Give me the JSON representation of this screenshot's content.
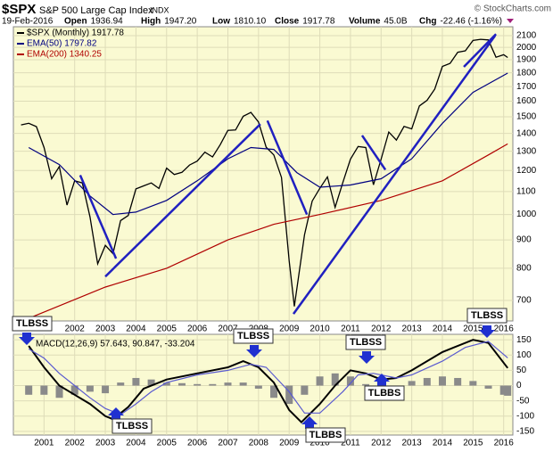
{
  "header": {
    "symbol": "$SPX",
    "name": "S&P 500 Large Cap Index",
    "exchange": "INDX",
    "copyright": "© StockCharts.com",
    "date": "19-Feb-2016",
    "items": [
      {
        "label": "Open",
        "value": "1936.94"
      },
      {
        "label": "High",
        "value": "1947.20"
      },
      {
        "label": "Low",
        "value": "1810.10"
      },
      {
        "label": "Close",
        "value": "1917.78"
      },
      {
        "label": "Volume",
        "value": "45.0B"
      },
      {
        "label": "Chg",
        "value": "-22.46 (-1.16%)"
      }
    ]
  },
  "annotations": [
    "TLBSS",
    "TLBSS",
    "TLBSS",
    "TLBBS",
    "TLBSS",
    "TLBBS",
    "TLBSS"
  ],
  "chart_data": [
    {
      "type": "line",
      "log_y": true,
      "grid": true,
      "xlim": [
        2000,
        2016.3
      ],
      "ylim": [
        643,
        2179
      ],
      "xticks": [
        2002,
        2003,
        2004,
        2005,
        2006,
        2007,
        2008,
        2009,
        2010,
        2011,
        2012,
        2013,
        2014,
        2015,
        2016
      ],
      "yticks": [
        700,
        800,
        900,
        1000,
        1100,
        1200,
        1300,
        1400,
        1500,
        1600,
        1700,
        1800,
        1900,
        2000,
        2100
      ],
      "series": [
        {
          "name": "$SPX (Monthly) 1917.78",
          "color": "#000000",
          "x": [
            2000.25,
            2000.5,
            2000.75,
            2001.0,
            2001.25,
            2001.5,
            2001.75,
            2002.0,
            2002.25,
            2002.5,
            2002.75,
            2003.0,
            2003.25,
            2003.5,
            2003.75,
            2004.0,
            2004.25,
            2004.5,
            2004.75,
            2005.0,
            2005.25,
            2005.5,
            2005.75,
            2006.0,
            2006.25,
            2006.5,
            2006.75,
            2007.0,
            2007.25,
            2007.5,
            2007.75,
            2008.0,
            2008.25,
            2008.5,
            2008.75,
            2009.0,
            2009.17,
            2009.5,
            2009.75,
            2010.0,
            2010.25,
            2010.5,
            2010.75,
            2011.0,
            2011.25,
            2011.5,
            2011.75,
            2012.0,
            2012.25,
            2012.5,
            2012.75,
            2013.0,
            2013.25,
            2013.5,
            2013.75,
            2014.0,
            2014.25,
            2014.5,
            2014.75,
            2015.0,
            2015.25,
            2015.5,
            2015.75,
            2016.0,
            2016.13
          ],
          "values": [
            1450,
            1460,
            1440,
            1320,
            1160,
            1220,
            1040,
            1150,
            1140,
            990,
            815,
            880,
            850,
            975,
            996,
            1112,
            1126,
            1140,
            1114,
            1212,
            1180,
            1191,
            1228,
            1248,
            1295,
            1270,
            1336,
            1418,
            1420,
            1503,
            1527,
            1468,
            1322,
            1280,
            1166,
            825,
            683,
            919,
            1057,
            1115,
            1169,
            1030,
            1141,
            1258,
            1326,
            1320,
            1131,
            1258,
            1408,
            1362,
            1441,
            1426,
            1569,
            1606,
            1682,
            1848,
            1872,
            1960,
            1972,
            2058,
            2068,
            2063,
            1920,
            1940,
            1917.78
          ]
        },
        {
          "name": "EMA(50) 1797.82",
          "color": "#000080",
          "x": [
            2000.5,
            2001.5,
            2002.5,
            2003.25,
            2004.0,
            2005.0,
            2006.0,
            2007.0,
            2007.75,
            2008.5,
            2009.25,
            2010.0,
            2011.0,
            2012.0,
            2013.0,
            2014.0,
            2015.0,
            2016.13
          ],
          "values": [
            1320,
            1230,
            1080,
            1000,
            1010,
            1060,
            1150,
            1260,
            1320,
            1310,
            1190,
            1120,
            1130,
            1160,
            1260,
            1460,
            1660,
            1797.82
          ]
        },
        {
          "name": "EMA(200) 1340.25",
          "color": "#b00000",
          "x": [
            2000.5,
            2003.0,
            2005.0,
            2007.0,
            2008.5,
            2010.0,
            2012.0,
            2014.0,
            2015.5,
            2016.13
          ],
          "values": [
            650,
            740,
            800,
            900,
            960,
            1000,
            1060,
            1150,
            1280,
            1340.25
          ]
        }
      ],
      "trendlines": [
        {
          "x": [
            2002.18,
            2003.35
          ],
          "y": [
            1177,
            833
          ]
        },
        {
          "x": [
            2003.0,
            2008.06
          ],
          "y": [
            773,
            1455
          ]
        },
        {
          "x": [
            2008.29,
            2009.58
          ],
          "y": [
            1476,
            1000
          ]
        },
        {
          "x": [
            2009.14,
            2015.72
          ],
          "y": [
            662,
            2100
          ]
        },
        {
          "x": [
            2011.38,
            2012.14
          ],
          "y": [
            1388,
            1204
          ]
        },
        {
          "x": [
            2014.7,
            2015.75
          ],
          "y": [
            1845,
            2114
          ]
        }
      ],
      "trendline_color": "#2020c0"
    },
    {
      "type": "macd",
      "grid": true,
      "title": "MACD(12,26,9) 57.643, 90.847, -33.204",
      "xlim": [
        2000,
        2016.3
      ],
      "ylim": [
        -162,
        168
      ],
      "xticks": [
        2001,
        2002,
        2003,
        2004,
        2005,
        2006,
        2007,
        2008,
        2009,
        2010,
        2011,
        2012,
        2013,
        2014,
        2015,
        2016
      ],
      "yticks": [
        150,
        100,
        50,
        0,
        -50,
        -100,
        -150
      ],
      "series": [
        {
          "color": "#000000",
          "x": [
            2000.5,
            2001.0,
            2001.5,
            2002.0,
            2002.5,
            2003.0,
            2003.25,
            2003.75,
            2004.25,
            2005.0,
            2006.0,
            2007.0,
            2007.5,
            2008.0,
            2008.5,
            2009.0,
            2009.4,
            2010.0,
            2010.5,
            2011.0,
            2011.5,
            2012.0,
            2012.5,
            2013.0,
            2014.0,
            2015.0,
            2015.5,
            2016.13
          ],
          "values": [
            130,
            60,
            0,
            -30,
            -60,
            -100,
            -110,
            -70,
            -10,
            20,
            40,
            60,
            80,
            60,
            10,
            -80,
            -120,
            -60,
            0,
            50,
            40,
            20,
            25,
            50,
            110,
            150,
            140,
            57.643
          ]
        },
        {
          "color": "#5a5ad0",
          "x": [
            2000.5,
            2001.0,
            2001.5,
            2002.0,
            2002.5,
            2003.0,
            2003.5,
            2004.0,
            2004.5,
            2005.0,
            2006.0,
            2007.0,
            2007.75,
            2008.25,
            2009.0,
            2009.5,
            2010.0,
            2010.75,
            2011.25,
            2011.75,
            2012.5,
            2013.0,
            2014.0,
            2014.75,
            2015.5,
            2016.13
          ],
          "values": [
            120,
            90,
            40,
            0,
            -40,
            -75,
            -95,
            -60,
            -20,
            10,
            35,
            50,
            70,
            60,
            -20,
            -90,
            -90,
            -20,
            35,
            40,
            25,
            35,
            80,
            125,
            145,
            90.847
          ]
        }
      ],
      "histogram": {
        "color": "#8a8a8a",
        "x": [
          2000.5,
          2001.0,
          2001.5,
          2002.0,
          2002.5,
          2003.0,
          2003.5,
          2004.0,
          2004.5,
          2005.0,
          2005.5,
          2006.0,
          2006.5,
          2007.0,
          2007.5,
          2008.0,
          2008.5,
          2009.0,
          2009.5,
          2010.0,
          2010.5,
          2011.0,
          2011.5,
          2012.0,
          2012.5,
          2013.0,
          2013.5,
          2014.0,
          2014.5,
          2015.0,
          2015.5,
          2016.0,
          2016.13
        ],
        "values": [
          -30,
          -30,
          -40,
          -30,
          -20,
          -25,
          10,
          25,
          20,
          10,
          8,
          5,
          5,
          10,
          10,
          -10,
          -40,
          -60,
          -30,
          30,
          40,
          30,
          5,
          -10,
          -5,
          15,
          25,
          30,
          25,
          15,
          -10,
          -30,
          -33.204
        ]
      }
    }
  ]
}
